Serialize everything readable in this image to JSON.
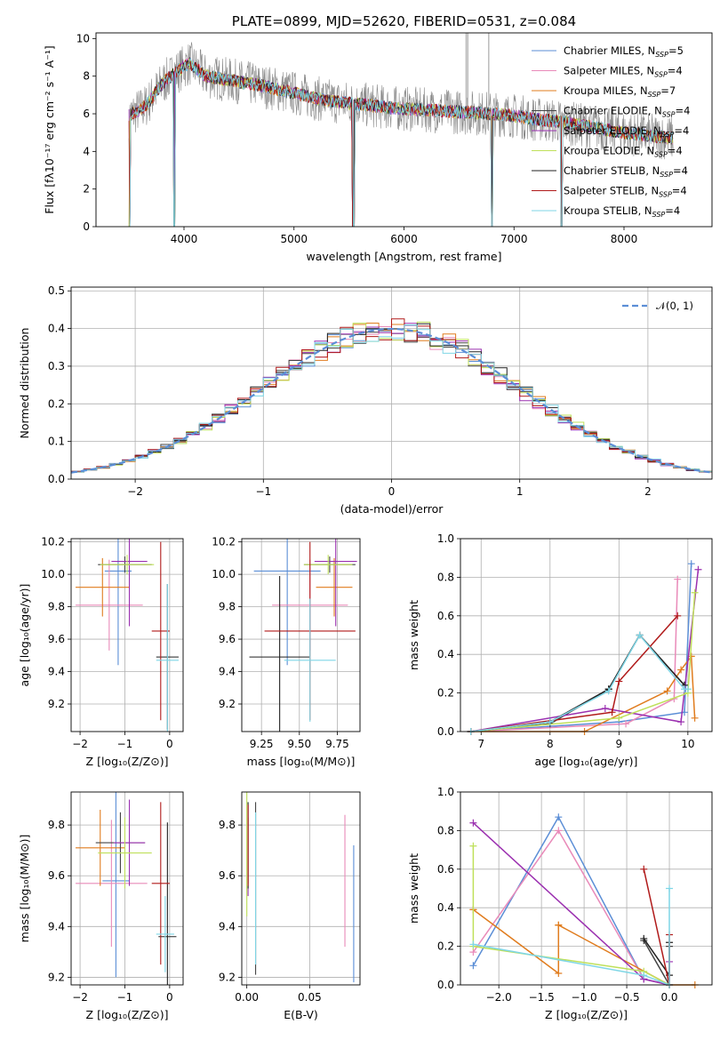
{
  "colors": {
    "chabrier_miles": "#5b8ed6",
    "salpeter_miles": "#e98ab9",
    "kroupa_miles": "#e07c1e",
    "chabrier_elodie": "#444444",
    "salpeter_elodie": "#9b30b0",
    "kroupa_elodie": "#bfe05a",
    "chabrier_stelib": "#222222",
    "salpeter_stelib": "#b01a1a",
    "kroupa_stelib": "#7fd6e6",
    "data": "#888888",
    "grid": "#b0b0b0"
  },
  "chart_data": [
    {
      "id": "spectrum",
      "type": "line",
      "title": "PLATE=0899, MJD=52620, FIBERID=0531, z=0.084",
      "xlabel": "wavelength [Angstrom, rest frame]",
      "ylabel": "Flux [fλ10⁻¹⁷ erg cm⁻² s⁻¹ A⁻¹]",
      "xlim": [
        3200,
        8800
      ],
      "ylim": [
        0,
        10.3
      ],
      "xticks": [
        "4000",
        "5000",
        "6000",
        "7000",
        "8000"
      ],
      "yticks": [
        "0",
        "2",
        "4",
        "6",
        "8",
        "10"
      ],
      "grid": false,
      "legend_position": "top-right",
      "legend": [
        {
          "label": "Chabrier MILES, N",
          "sub": "SSP",
          "tail": "=5"
        },
        {
          "label": "Salpeter MILES, N",
          "sub": "SSP",
          "tail": "=4"
        },
        {
          "label": "Kroupa MILES, N",
          "sub": "SSP",
          "tail": "=7"
        },
        {
          "label": "Chabrier ELODIE, N",
          "sub": "SSP",
          "tail": "=4"
        },
        {
          "label": "Salpeter ELODIE, N",
          "sub": "SSP",
          "tail": "=4"
        },
        {
          "label": "Kroupa ELODIE, N",
          "sub": "SSP",
          "tail": "=4"
        },
        {
          "label": "Chabrier STELIB, N",
          "sub": "SSP",
          "tail": "=4"
        },
        {
          "label": "Salpeter STELIB, N",
          "sub": "SSP",
          "tail": "=4"
        },
        {
          "label": "Kroupa STELIB, N",
          "sub": "SSP",
          "tail": "=4"
        }
      ],
      "continuum": {
        "x": [
          3500,
          3650,
          3800,
          3950,
          4050,
          4200,
          4400,
          4700,
          5000,
          5300,
          5600,
          5900,
          6200,
          6500,
          6800,
          7000,
          7200,
          7400,
          7700,
          8000,
          8300,
          8450
        ],
        "y": [
          5.9,
          6.4,
          7.6,
          8.3,
          8.7,
          8.0,
          7.8,
          7.5,
          7.1,
          6.7,
          6.5,
          6.3,
          6.2,
          6.1,
          6.0,
          5.9,
          5.7,
          5.6,
          5.3,
          5.0,
          4.8,
          4.7
        ]
      },
      "dips": [
        {
          "x": 3500,
          "y": 0.0
        },
        {
          "x": 3910,
          "y": 0.0
        },
        {
          "x": 5540,
          "y": 0.0
        },
        {
          "x": 6800,
          "y": 0.0
        },
        {
          "x": 7430,
          "y": 0.0
        }
      ],
      "spikes": [
        {
          "x": 6565,
          "y": 10.3
        },
        {
          "x": 6770,
          "y": 10.3
        },
        {
          "x": 6580,
          "y": 10.3
        }
      ]
    },
    {
      "id": "residuals",
      "type": "bar",
      "xlabel": "(data-model)/error",
      "ylabel": "Normed distribution",
      "xlim": [
        -2.5,
        2.5
      ],
      "ylim": [
        0,
        0.51
      ],
      "xticks": [
        "−2",
        "−1",
        "0",
        "1",
        "2"
      ],
      "yticks": [
        "0.0",
        "0.1",
        "0.2",
        "0.3",
        "0.4",
        "0.5"
      ],
      "grid": true,
      "legend_position": "top-right",
      "legend": "𝒩(0, 1)",
      "bin_width": 0.1,
      "series_offsets": [
        0.0,
        0.012,
        -0.01,
        0.006,
        0.014,
        -0.008,
        0.004,
        0.01,
        -0.004
      ]
    },
    {
      "id": "age_vs_z",
      "type": "scatter",
      "xlabel": "Z [log₁₀(Z/Z⊙)]",
      "ylabel": "age  [log₁₀(age/yr)]",
      "xlim": [
        -2.2,
        0.3
      ],
      "ylim": [
        9.03,
        10.22
      ],
      "xticks": [
        "−2",
        "−1",
        "0"
      ],
      "yticks": [
        "9.2",
        "9.4",
        "9.6",
        "9.8",
        "10.0",
        "10.2"
      ],
      "grid": true,
      "points": [
        {
          "s": "chabrier_miles",
          "x": -1.15,
          "xe": 0.3,
          "y": 10.02,
          "ye": 0.58
        },
        {
          "s": "salpeter_miles",
          "x": -1.35,
          "xe": 0.75,
          "y": 9.81,
          "ye": 0.28
        },
        {
          "s": "kroupa_miles",
          "x": -1.5,
          "xe": 0.6,
          "y": 9.92,
          "ye": 0.18
        },
        {
          "s": "chabrier_elodie",
          "x": -1.0,
          "xe": 0.6,
          "y": 10.06,
          "ye": 0.05
        },
        {
          "s": "salpeter_elodie",
          "x": -0.9,
          "xe": 0.4,
          "y": 10.08,
          "ye": 0.4
        },
        {
          "s": "kroupa_elodie",
          "x": -0.95,
          "xe": 0.6,
          "y": 10.06,
          "ye": 0.06
        },
        {
          "s": "chabrier_stelib",
          "x": -0.05,
          "xe": 0.25,
          "y": 9.49,
          "ye": 0.45
        },
        {
          "s": "salpeter_stelib",
          "x": -0.2,
          "xe": 0.2,
          "y": 9.65,
          "ye": 0.55
        },
        {
          "s": "kroupa_stelib",
          "x": -0.05,
          "xe": 0.25,
          "y": 9.47,
          "ye": 0.47
        }
      ]
    },
    {
      "id": "age_vs_mass",
      "type": "scatter",
      "xlabel": "mass [log₁₀(M/M⊙)]",
      "ylabel": "",
      "xlim": [
        9.12,
        9.9
      ],
      "ylim": [
        9.03,
        10.22
      ],
      "xticks": [
        "9.25",
        "9.50",
        "9.75"
      ],
      "yticks": [
        "9.2",
        "9.4",
        "9.6",
        "9.8",
        "10.0",
        "10.2"
      ],
      "grid": true,
      "points": [
        {
          "s": "chabrier_miles",
          "x": 9.42,
          "xe": 0.22,
          "y": 10.02,
          "ye": 0.58
        },
        {
          "s": "salpeter_miles",
          "x": 9.57,
          "xe": 0.25,
          "y": 9.81,
          "ye": 0.28
        },
        {
          "s": "kroupa_miles",
          "x": 9.73,
          "xe": 0.12,
          "y": 9.92,
          "ye": 0.18
        },
        {
          "s": "chabrier_elodie",
          "x": 9.7,
          "xe": 0.17,
          "y": 10.06,
          "ye": 0.05
        },
        {
          "s": "salpeter_elodie",
          "x": 9.74,
          "xe": 0.14,
          "y": 10.08,
          "ye": 0.4
        },
        {
          "s": "kroupa_elodie",
          "x": 9.69,
          "xe": 0.16,
          "y": 10.06,
          "ye": 0.06
        },
        {
          "s": "chabrier_stelib",
          "x": 9.37,
          "xe": 0.2,
          "y": 9.49,
          "ye": 0.5
        },
        {
          "s": "salpeter_stelib",
          "x": 9.57,
          "xe": 0.3,
          "y": 9.65,
          "ye": 0.55
        },
        {
          "s": "kroupa_stelib",
          "x": 9.57,
          "xe": 0.17,
          "y": 9.47,
          "ye": 0.38
        }
      ]
    },
    {
      "id": "weight_vs_age",
      "type": "line",
      "xlabel": "age  [log₁₀(age/yr)]",
      "ylabel": "mass weight",
      "xlim": [
        6.7,
        10.35
      ],
      "ylim": [
        0,
        1.0
      ],
      "xticks": [
        "7",
        "8",
        "9",
        "10"
      ],
      "yticks": [
        "0.0",
        "0.2",
        "0.4",
        "0.6",
        "0.8",
        "1.0"
      ],
      "grid": true,
      "series": [
        {
          "s": "chabrier_miles",
          "x": [
            6.85,
            9.0,
            9.95,
            10.05
          ],
          "y": [
            0.0,
            0.05,
            0.1,
            0.87
          ]
        },
        {
          "s": "salpeter_miles",
          "x": [
            6.85,
            9.1,
            9.8,
            9.85
          ],
          "y": [
            0.0,
            0.04,
            0.17,
            0.79
          ]
        },
        {
          "s": "kroupa_miles",
          "x": [
            6.85,
            8.5,
            9.7,
            9.9,
            10.05,
            10.1
          ],
          "y": [
            0.0,
            0.0,
            0.21,
            0.32,
            0.39,
            0.07
          ]
        },
        {
          "s": "chabrier_elodie",
          "x": [
            6.85,
            8.0,
            8.85,
            9.3,
            9.95
          ],
          "y": [
            0.0,
            0.04,
            0.22,
            0.5,
            0.24
          ]
        },
        {
          "s": "salpeter_elodie",
          "x": [
            6.85,
            8.8,
            9.9,
            10.15
          ],
          "y": [
            0.0,
            0.12,
            0.05,
            0.84
          ]
        },
        {
          "s": "kroupa_elodie",
          "x": [
            6.85,
            9.0,
            10.0,
            10.1
          ],
          "y": [
            0.0,
            0.07,
            0.2,
            0.72
          ]
        },
        {
          "s": "chabrier_stelib",
          "x": [
            6.85,
            8.0,
            8.85,
            9.3,
            9.95
          ],
          "y": [
            0.0,
            0.05,
            0.22,
            0.5,
            0.24
          ]
        },
        {
          "s": "salpeter_stelib",
          "x": [
            6.85,
            8.9,
            9.0,
            9.85
          ],
          "y": [
            0.0,
            0.1,
            0.26,
            0.6
          ]
        },
        {
          "s": "kroupa_stelib",
          "x": [
            6.85,
            8.0,
            8.85,
            9.3,
            9.95,
            10.0
          ],
          "y": [
            0.0,
            0.05,
            0.21,
            0.5,
            0.22,
            0.22
          ]
        }
      ]
    },
    {
      "id": "mass_vs_z",
      "type": "scatter",
      "xlabel": "Z [log₁₀(Z/Z⊙)]",
      "ylabel": "mass [log₁₀(M/M⊙)]",
      "xlim": [
        -2.2,
        0.3
      ],
      "ylim": [
        9.17,
        9.93
      ],
      "xticks": [
        "−2",
        "−1",
        "0"
      ],
      "yticks": [
        "9.2",
        "9.4",
        "9.6",
        "9.8"
      ],
      "grid": true,
      "points": [
        {
          "s": "chabrier_miles",
          "x": -1.2,
          "xe": 0.3,
          "y": 9.58,
          "ye": 0.38
        },
        {
          "s": "salpeter_miles",
          "x": -1.3,
          "xe": 0.8,
          "y": 9.57,
          "ye": 0.25
        },
        {
          "s": "kroupa_miles",
          "x": -1.55,
          "xe": 0.55,
          "y": 9.71,
          "ye": 0.15
        },
        {
          "s": "chabrier_elodie",
          "x": -1.1,
          "xe": 0.55,
          "y": 9.73,
          "ye": 0.12
        },
        {
          "s": "salpeter_elodie",
          "x": -0.9,
          "xe": 0.35,
          "y": 9.73,
          "ye": 0.17
        },
        {
          "s": "kroupa_elodie",
          "x": -1.0,
          "xe": 0.6,
          "y": 9.69,
          "ye": 0.14
        },
        {
          "s": "chabrier_stelib",
          "x": -0.05,
          "xe": 0.2,
          "y": 9.36,
          "ye": 0.45
        },
        {
          "s": "salpeter_stelib",
          "x": -0.2,
          "xe": 0.2,
          "y": 9.57,
          "ye": 0.32
        },
        {
          "s": "kroupa_stelib",
          "x": -0.1,
          "xe": 0.2,
          "y": 9.37,
          "ye": 0.15
        }
      ]
    },
    {
      "id": "mass_vs_ebv",
      "type": "scatter",
      "xlabel": "E(B-V)",
      "ylabel": "",
      "xlim": [
        -0.004,
        0.09
      ],
      "ylim": [
        9.17,
        9.93
      ],
      "xticks": [
        "0.00",
        "0.05"
      ],
      "yticks": [
        "9.2",
        "9.4",
        "9.6",
        "9.8"
      ],
      "grid": true,
      "points": [
        {
          "s": "chabrier_miles",
          "x": 0.085,
          "y": 9.45,
          "ye": 0.27
        },
        {
          "s": "salpeter_miles",
          "x": 0.078,
          "y": 9.58,
          "ye": 0.26
        },
        {
          "s": "kroupa_miles",
          "x": 0.001,
          "y": 9.7,
          "ye": 0.13
        },
        {
          "s": "chabrier_elodie",
          "x": 0.007,
          "y": 9.55,
          "ye": 0.34
        },
        {
          "s": "salpeter_elodie",
          "x": 0.001,
          "y": 9.7,
          "ye": 0.18
        },
        {
          "s": "kroupa_elodie",
          "x": 0.0,
          "y": 9.7,
          "ye": 0.26
        },
        {
          "s": "chabrier_stelib",
          "x": 0.001,
          "y": 9.72,
          "ye": 0.17
        },
        {
          "s": "salpeter_stelib",
          "x": 0.001,
          "y": 9.72,
          "ye": 0.16
        },
        {
          "s": "kroupa_stelib",
          "x": 0.007,
          "y": 9.55,
          "ye": 0.3
        }
      ]
    },
    {
      "id": "weight_vs_z",
      "type": "line",
      "xlabel": "Z [log₁₀(Z/Z⊙)]",
      "ylabel": "mass weight",
      "xlim": [
        -2.45,
        0.5
      ],
      "ylim": [
        0,
        1.0
      ],
      "xticks": [
        "−2.0",
        "−1.5",
        "−1.0",
        "−0.5",
        "0.0"
      ],
      "yticks": [
        "0.0",
        "0.2",
        "0.4",
        "0.6",
        "0.8",
        "1.0"
      ],
      "grid": true,
      "series": [
        {
          "s": "chabrier_miles",
          "x": [
            -2.3,
            -1.3,
            -0.3,
            0.0
          ],
          "y": [
            0.1,
            0.87,
            0.03,
            0.0
          ]
        },
        {
          "s": "salpeter_miles",
          "x": [
            -2.3,
            -1.3,
            -0.3,
            0.0
          ],
          "y": [
            0.17,
            0.8,
            0.03,
            0.0
          ]
        },
        {
          "s": "kroupa_miles",
          "x": [
            -2.3,
            -2.3,
            -1.3,
            -1.3,
            -1.3,
            0.0,
            0.3
          ],
          "y": [
            0.39,
            0.39,
            0.06,
            0.31,
            0.31,
            0.0,
            0.0
          ]
        },
        {
          "s": "chabrier_elodie",
          "x": [
            -0.3,
            0.0,
            0.0
          ],
          "y": [
            0.23,
            0.0,
            0.2
          ]
        },
        {
          "s": "salpeter_elodie",
          "x": [
            -2.3,
            -0.3,
            0.0,
            0.0
          ],
          "y": [
            0.84,
            0.03,
            0.0,
            0.12
          ]
        },
        {
          "s": "kroupa_elodie",
          "x": [
            -2.3,
            -2.3,
            -0.3,
            0.0
          ],
          "y": [
            0.72,
            0.2,
            0.07,
            0.0
          ]
        },
        {
          "s": "chabrier_stelib",
          "x": [
            -0.3,
            0.0,
            0.0
          ],
          "y": [
            0.24,
            0.05,
            0.22
          ]
        },
        {
          "s": "salpeter_stelib",
          "x": [
            -0.3,
            0.0,
            0.0
          ],
          "y": [
            0.6,
            0.0,
            0.26
          ]
        },
        {
          "s": "kroupa_stelib",
          "x": [
            -2.3,
            -0.3,
            0.0,
            0.0
          ],
          "y": [
            0.21,
            0.05,
            0.0,
            0.5
          ]
        }
      ]
    }
  ]
}
